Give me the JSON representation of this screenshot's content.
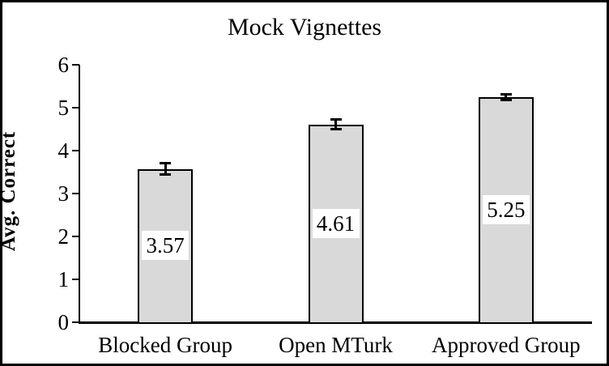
{
  "chart_data": {
    "type": "bar",
    "title": "Mock Vignettes",
    "ylabel": "Avg. Correct",
    "xlabel": "",
    "categories": [
      "Blocked Group",
      "Open MTurk",
      "Approved Group"
    ],
    "values": [
      3.57,
      4.61,
      5.25
    ],
    "data_labels": [
      "3.57",
      "4.61",
      "5.25"
    ],
    "error_bars": [
      0.14,
      0.12,
      0.08
    ],
    "ylim": [
      0,
      6
    ],
    "yticks": [
      0,
      1,
      2,
      3,
      4,
      5,
      6
    ],
    "grid": false,
    "legend": "none",
    "bar_fill_color": "#d9d9d9",
    "bar_border_color": "#000000",
    "axis_color": "#000000",
    "background_color": "#ffffff",
    "frame_color": "#000000"
  }
}
